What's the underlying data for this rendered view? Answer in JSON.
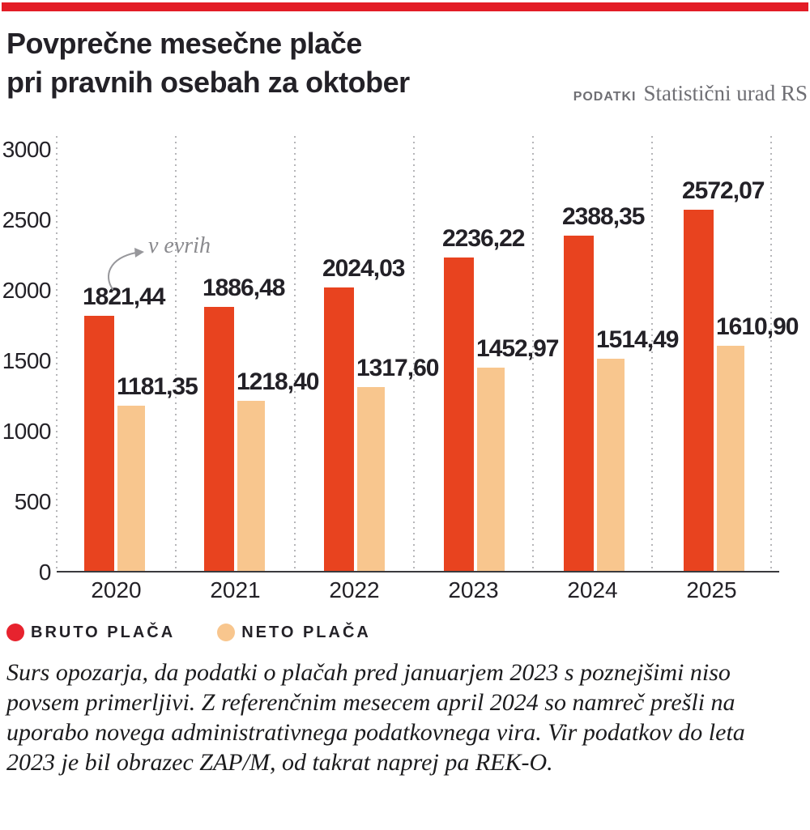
{
  "page": {
    "title_line1": "Povprečne mesečne plače",
    "title_line2": "pri pravnih osebah za oktober",
    "source_label": "PODATKI",
    "source_name": "Statistični urad RS"
  },
  "annotation": {
    "unit_note": "v evrih"
  },
  "legend": {
    "bruto": {
      "label": "BRUTO PLAČA"
    },
    "neto": {
      "label": "NETO PLAČA"
    }
  },
  "colors": {
    "banner_red": "#e31d26",
    "bruto_bar": "#e8431f",
    "neto_bar": "#f8c68e",
    "bruto_legend_dot": "#e7232e",
    "neto_legend_dot": "#f8c68e",
    "gridline_gray": "#b6b6b9",
    "axis_dark": "#3a3a3e",
    "text_dark": "#232127",
    "text_gray": "#6f6f74"
  },
  "chart_data": {
    "type": "bar",
    "title": "Povprečne mesečne plače pri pravnih osebah za oktober",
    "unit_annotation": "v evrih",
    "categories": [
      "2020",
      "2021",
      "2022",
      "2023",
      "2024",
      "2025"
    ],
    "series": [
      {
        "name": "BRUTO PLAČA",
        "values": [
          1821.44,
          1886.48,
          2024.03,
          2236.22,
          2388.35,
          2572.07
        ],
        "labels": [
          "1821,44",
          "1886,48",
          "2024,03",
          "2236,22",
          "2388,35",
          "2572,07"
        ]
      },
      {
        "name": "NETO PLAČA",
        "values": [
          1181.35,
          1218.4,
          1317.6,
          1452.97,
          1514.49,
          1610.9
        ],
        "labels": [
          "1181,35",
          "1218,40",
          "1317,60",
          "1452,97",
          "1514,49",
          "1610,90"
        ]
      }
    ],
    "y_ticks": [
      0,
      500,
      1000,
      1500,
      2000,
      2500,
      3000
    ],
    "ylim": [
      0,
      3000
    ],
    "xlabel": "",
    "ylabel": "",
    "grid": "vertical-dotted",
    "legend_position": "bottom-left"
  },
  "footnote_lines": [
    "Surs opozarja, da podatki o plačah pred januarjem 2023 s poznejšimi niso",
    "povsem primerljivi. Z referenčnim mesecem april 2024 so namreč prešli na",
    "uporabo novega administrativnega podatkovnega vira. Vir podatkov do leta",
    "2023 je bil obrazec ZAP/M, od takrat naprej pa REK-O."
  ]
}
